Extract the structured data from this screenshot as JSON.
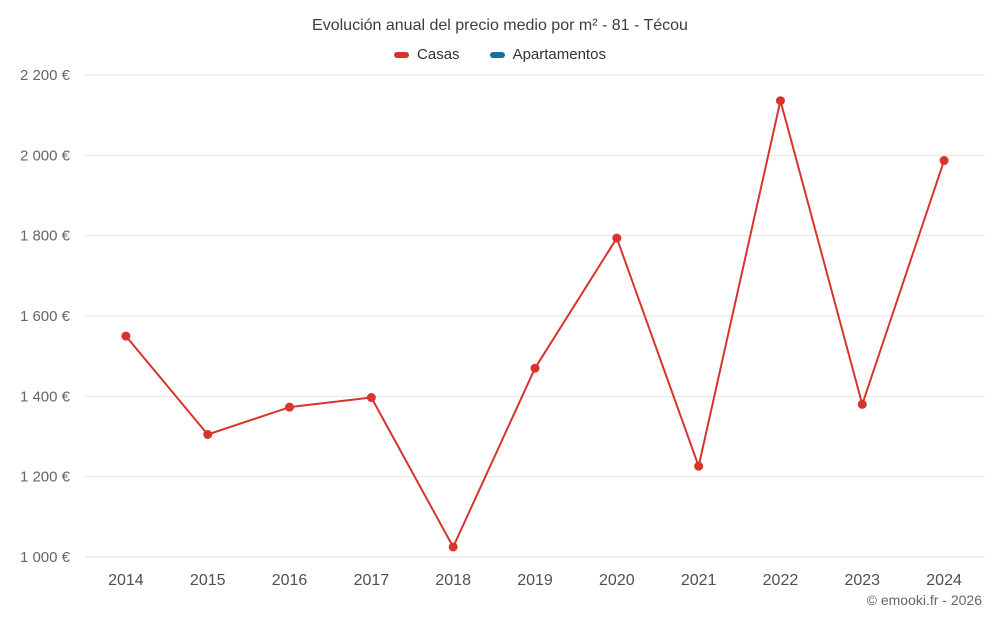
{
  "chart_data": {
    "type": "line",
    "title": "Evolución anual del precio medio por m² - 81 - Técou",
    "categories": [
      "2014",
      "2015",
      "2016",
      "2017",
      "2018",
      "2019",
      "2020",
      "2021",
      "2022",
      "2023",
      "2024"
    ],
    "series": [
      {
        "name": "Casas",
        "color": "#d7342e",
        "values": [
          1550,
          1305,
          1373,
          1397,
          1025,
          1470,
          1794,
          1226,
          2136,
          1380,
          1987
        ]
      },
      {
        "name": "Apartamentos",
        "color": "#1a6e9e",
        "values": []
      }
    ],
    "ylim": [
      1000,
      2200
    ],
    "ytick_step": 200,
    "y_suffix": "€",
    "grid": "horizontal",
    "gridline_color": "#e6e6e6",
    "axis_line_color": "#e0e0e0",
    "ytick_label_color": "#666666",
    "xtick_label_color": "#4f4f4f",
    "legend_position": "top",
    "footer": "© emooki.fr - 2026"
  }
}
